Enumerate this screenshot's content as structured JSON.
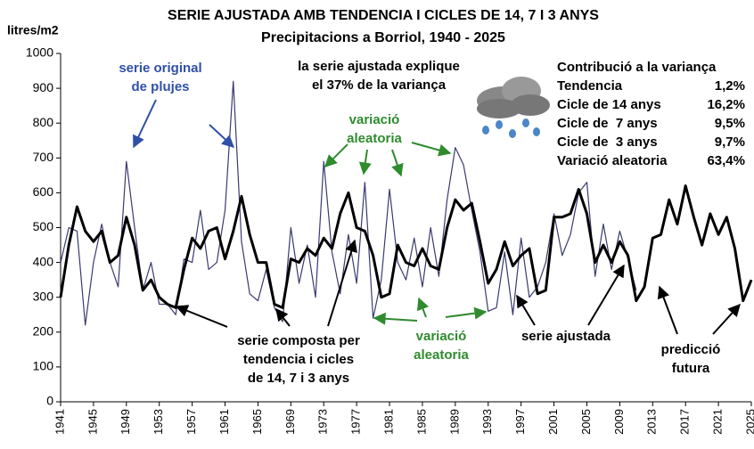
{
  "chart_data": {
    "type": "line",
    "title": "SERIE AJUSTADA AMB TENDENCIA I CICLES DE 14, 7 I 3 ANYS",
    "subtitle": "Precipitacions a Borriol, 1940 - 2025",
    "y_label": "litres/m2",
    "x": [
      1941,
      1942,
      1943,
      1944,
      1945,
      1946,
      1947,
      1948,
      1949,
      1950,
      1951,
      1952,
      1953,
      1954,
      1955,
      1956,
      1957,
      1958,
      1959,
      1960,
      1961,
      1962,
      1963,
      1964,
      1965,
      1966,
      1967,
      1968,
      1969,
      1970,
      1971,
      1972,
      1973,
      1974,
      1975,
      1976,
      1977,
      1978,
      1979,
      1980,
      1981,
      1982,
      1983,
      1984,
      1985,
      1986,
      1987,
      1988,
      1989,
      1990,
      1991,
      1992,
      1993,
      1994,
      1995,
      1996,
      1997,
      1998,
      1999,
      2000,
      2001,
      2002,
      2003,
      2004,
      2005,
      2006,
      2007,
      2008,
      2009,
      2010,
      2011,
      2012,
      2013,
      2014,
      2015,
      2016,
      2017,
      2018,
      2019,
      2020,
      2021,
      2022,
      2023,
      2024,
      2025
    ],
    "series": [
      {
        "color": "#3a3a70",
        "width": 1.2,
        "values": [
          400,
          500,
          490,
          220,
          400,
          510,
          400,
          330,
          690,
          500,
          320,
          400,
          280,
          280,
          250,
          410,
          400,
          550,
          380,
          400,
          550,
          920,
          460,
          310,
          290,
          380,
          270,
          230,
          500,
          340,
          450,
          300,
          690,
          430,
          310,
          480,
          340,
          630,
          240,
          350,
          610,
          400,
          350,
          470,
          330,
          500,
          360,
          580,
          730,
          680,
          550,
          430,
          260,
          270,
          430,
          250,
          470,
          300,
          330,
          400,
          540,
          420,
          480,
          600,
          630,
          360,
          510,
          380,
          490,
          410,
          320,
          null,
          null,
          null,
          null,
          null,
          null,
          null,
          null,
          null,
          null,
          null,
          null,
          null,
          null
        ]
      },
      {
        "color": "#000000",
        "width": 3,
        "values": [
          300,
          450,
          560,
          490,
          460,
          490,
          400,
          420,
          530,
          450,
          320,
          350,
          300,
          280,
          270,
          380,
          470,
          440,
          490,
          500,
          410,
          490,
          590,
          480,
          400,
          400,
          280,
          270,
          410,
          400,
          440,
          420,
          470,
          440,
          540,
          600,
          500,
          490,
          420,
          300,
          310,
          450,
          400,
          390,
          440,
          390,
          380,
          500,
          580,
          550,
          570,
          460,
          340,
          380,
          460,
          390,
          420,
          440,
          310,
          320,
          530,
          530,
          540,
          610,
          540,
          400,
          450,
          400,
          460,
          420,
          290,
          330,
          470,
          480,
          580,
          510,
          620,
          530,
          450,
          540,
          480,
          530,
          440,
          290,
          350
        ]
      }
    ],
    "xlim": [
      1941,
      2025
    ],
    "xticks": [
      1941,
      1945,
      1949,
      1953,
      1957,
      1961,
      1965,
      1969,
      1973,
      1977,
      1981,
      1985,
      1989,
      1993,
      1997,
      2001,
      2005,
      2009,
      2013,
      2017,
      2021,
      2025
    ],
    "ylim": [
      0,
      1000
    ],
    "yticks": [
      0,
      100,
      200,
      300,
      400,
      500,
      600,
      700,
      800,
      900,
      1000
    ],
    "annotations": [
      {
        "lines": [
          "serie original",
          "de plujes"
        ],
        "color": "#3050a8"
      },
      {
        "lines": [
          "la serie ajustada explique",
          "el 37% de la variança"
        ],
        "color": "#000000"
      },
      {
        "lines": [
          "variació",
          "aleatoria"
        ],
        "color": "#2e8b2e"
      },
      {
        "lines": [
          "serie composta per",
          "tendencia i cicles",
          "de 14, 7 i 3 anys"
        ],
        "color": "#000000"
      },
      {
        "lines": [
          "variació",
          "aleatoria"
        ],
        "color": "#2e8b2e"
      },
      {
        "lines": [
          "serie ajustada"
        ],
        "color": "#000000"
      },
      {
        "lines": [
          "predicció",
          "futura"
        ],
        "color": "#000000"
      }
    ],
    "variance_table": {
      "title": "Contribució a la variança",
      "rows": [
        [
          "Tendencia",
          "1,2%"
        ],
        [
          "Cicle de 14 anys",
          "16,2%"
        ],
        [
          "Cicle de  7 anys",
          "9,5%"
        ],
        [
          "Cicle de  3 anys",
          "9,7%"
        ],
        [
          "Variació aleatoria",
          "63,4%"
        ]
      ]
    }
  }
}
